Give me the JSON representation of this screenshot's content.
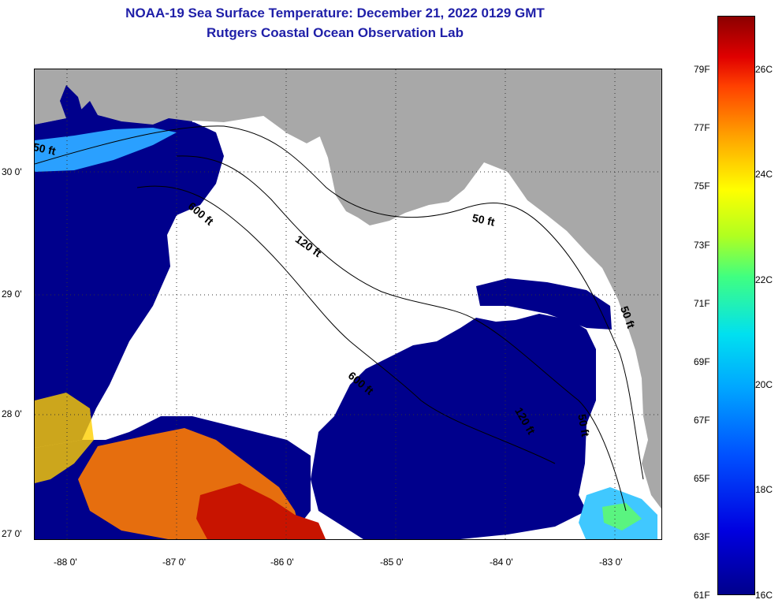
{
  "title": {
    "line1": "NOAA-19 Sea Surface Temperature:  December 21, 2022 0129 GMT",
    "line2": "Rutgers Coastal Ocean Observation Lab"
  },
  "latitude_labels": [
    "30 0'",
    "29 0'",
    "28 0'",
    "27 0'"
  ],
  "longitude_labels": [
    "-88 0'",
    "-87 0'",
    "-86 0'",
    "-85 0'",
    "-84 0'",
    "-83 0'"
  ],
  "contour_labels": {
    "c50_west": "50 ft",
    "c600": "600 ft",
    "c120": "120 ft",
    "c50_north": "50 ft",
    "c50_east": "50 ft",
    "c600_mid": "600 ft",
    "c120_south": "120 ft",
    "c50_south": "50 ft"
  },
  "colorbar": {
    "fahrenheit": [
      "79F",
      "77F",
      "75F",
      "73F",
      "71F",
      "69F",
      "67F",
      "65F",
      "63F",
      "61F"
    ],
    "celsius": [
      "26C",
      "24C",
      "22C",
      "20C",
      "18C",
      "16C"
    ]
  },
  "colors": {
    "title": "#1f1fa8",
    "land": "#a8a8a8",
    "cold": "#00008c",
    "warm": "#c81400"
  }
}
